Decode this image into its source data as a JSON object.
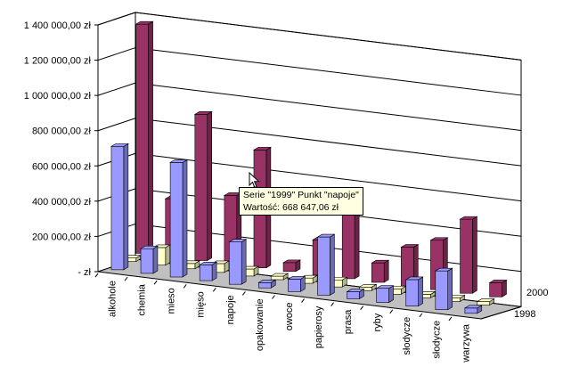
{
  "chart_data": {
    "type": "bar3d",
    "categories": [
      "alkohole",
      "chemia",
      "mieso",
      "mięso",
      "napoje",
      "opakowanie",
      "owoce",
      "papierosy",
      "prasa",
      "ryby",
      "słodycze",
      "słodycze",
      "warzywa"
    ],
    "series": [
      {
        "name": "1998",
        "values": [
          700000,
          140000,
          650000,
          90000,
          240000,
          30000,
          70000,
          330000,
          40000,
          80000,
          150000,
          220000,
          30000
        ],
        "color": "#9999ff"
      },
      {
        "name": "2000",
        "values": [
          20000,
          100000,
          30000,
          50000,
          40000,
          20000,
          30000,
          40000,
          20000,
          30000,
          20000,
          20000,
          20000
        ],
        "color": "#ffffcc"
      },
      {
        "name": "1999",
        "values": [
          1300000,
          330000,
          830000,
          390000,
          668647.06,
          50000,
          200000,
          420000,
          110000,
          220000,
          280000,
          420000,
          80000
        ],
        "color": "#993366"
      }
    ],
    "depth_labels": [
      "1998",
      "2000"
    ],
    "y_ticks": [
      "-   zł",
      "200 000,00 zł",
      "400 000,00 zł",
      "600 000,00 zł",
      "800 000,00 zł",
      "1 000 000,00 zł",
      "1 200 000,00 zł",
      "1 400 000,00 zł"
    ],
    "ylim": [
      0,
      1400000
    ],
    "grid": true,
    "tooltip": {
      "line1": "Serie \"1999\" Punkt \"napoje\"",
      "line2": "Wartość:  668 647,06 zł"
    }
  }
}
